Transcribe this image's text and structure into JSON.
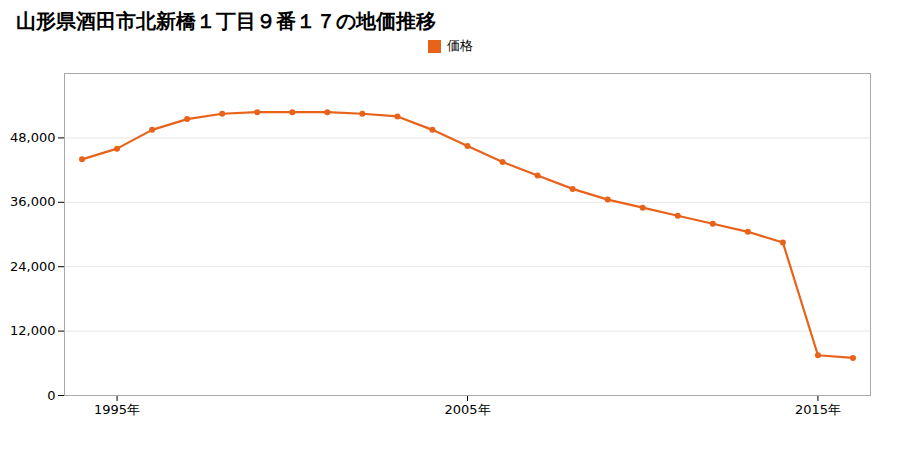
{
  "chart_data": {
    "type": "line",
    "title": "山形県酒田市北新橋１丁目９番１７の地価推移",
    "x": [
      1994,
      1995,
      1996,
      1997,
      1998,
      1999,
      2000,
      2001,
      2002,
      2003,
      2004,
      2005,
      2006,
      2007,
      2008,
      2009,
      2010,
      2011,
      2012,
      2013,
      2014,
      2015,
      2016
    ],
    "series": [
      {
        "name": "価格",
        "color": "#e8621a",
        "marker": "circle",
        "values": [
          44000,
          46000,
          49500,
          51500,
          52500,
          52800,
          52800,
          52800,
          52500,
          52000,
          49500,
          46500,
          43500,
          41000,
          38500,
          36500,
          35000,
          33500,
          32000,
          30500,
          28500,
          7500,
          7000
        ]
      }
    ],
    "xlim": [
      1993.5,
      2016.5
    ],
    "xticks": [
      {
        "value": 1995,
        "label": "1995年"
      },
      {
        "value": 2005,
        "label": "2005年"
      },
      {
        "value": 2015,
        "label": "2015年"
      }
    ],
    "ylim": [
      0,
      60000
    ],
    "yticks": [
      0,
      {
        "value": 12000,
        "label": "12,000"
      },
      {
        "value": 24000,
        "label": "24,000"
      },
      {
        "value": 36000,
        "label": "36,000"
      },
      {
        "value": 48000,
        "label": "48,000"
      }
    ],
    "grid": "y",
    "legend": "top"
  }
}
